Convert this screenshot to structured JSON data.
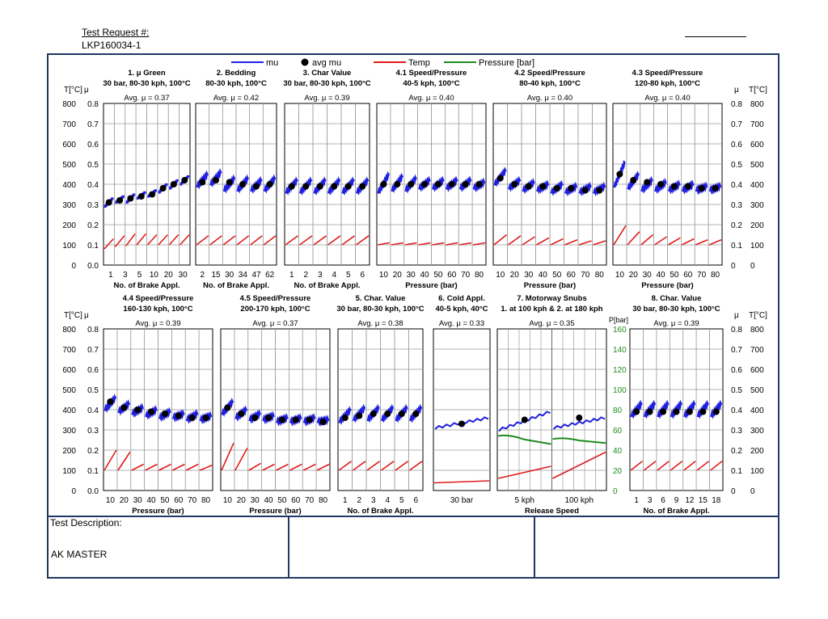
{
  "header": {
    "label": "Test Request #:",
    "value": "LKP160034-1"
  },
  "description": {
    "label": "Test Description:",
    "value": "AK MASTER"
  },
  "legend": [
    {
      "name": "mu",
      "color": "#1f1fe0",
      "kind": "line"
    },
    {
      "name": "avg mu",
      "color": "#000000",
      "kind": "dot"
    },
    {
      "name": "Temp",
      "color": "#e01b1b",
      "kind": "line"
    },
    {
      "name": "Pressure [bar]",
      "color": "#1e8c1e",
      "kind": "line"
    }
  ],
  "axes": {
    "t_label": "T[°C]",
    "mu_label": "μ",
    "p_label": "P[bar]",
    "t_ticks": [
      "800",
      "700",
      "600",
      "500",
      "400",
      "300",
      "200",
      "100",
      "0"
    ],
    "mu_ticks": [
      "0.8",
      "0.7",
      "0.6",
      "0.5",
      "0.4",
      "0.3",
      "0.2",
      "0.1",
      "0.0"
    ],
    "mu_ticks_right": [
      "0.8",
      "0.7",
      "0.6",
      "0.5",
      "0.4",
      "0.3",
      "0.2",
      "0.1",
      "0"
    ],
    "p_ticks": [
      "160",
      "140",
      "120",
      "100",
      "80",
      "60",
      "40",
      "20",
      "0"
    ]
  },
  "chart_data": [
    {
      "type": "line",
      "title": "1. μ Green",
      "subtitle": "30 bar, 80-30 kph, 100°C",
      "avg_label": "Avg. μ = 0.37",
      "xlabel": "No. of Brake Appl.",
      "xticks": [
        "1",
        "3",
        "5",
        "10",
        "20",
        "30"
      ],
      "ylim_mu": [
        0,
        0.8
      ],
      "ylim_temp": [
        0,
        800
      ],
      "ptype": "saw",
      "ncycles": 8,
      "mu": [
        [
          0.29,
          0.33
        ],
        [
          0.31,
          0.34
        ],
        [
          0.31,
          0.35
        ],
        [
          0.33,
          0.36
        ],
        [
          0.34,
          0.37
        ],
        [
          0.36,
          0.4
        ],
        [
          0.38,
          0.42
        ],
        [
          0.4,
          0.44
        ]
      ],
      "avg_mu": [
        0.31,
        0.32,
        0.33,
        0.34,
        0.35,
        0.38,
        0.4,
        0.42
      ],
      "temp": [
        [
          80,
          130
        ],
        [
          90,
          145
        ],
        [
          95,
          155
        ],
        [
          100,
          155
        ],
        [
          100,
          150
        ],
        [
          100,
          150
        ],
        [
          100,
          150
        ],
        [
          100,
          150
        ]
      ]
    },
    {
      "type": "line",
      "title": "2. Bedding",
      "subtitle": "80-30 kph, 100°C",
      "avg_label": "Avg. μ = 0.42",
      "xlabel": "No. of Brake Appl.",
      "xticks": [
        "2",
        "15",
        "30",
        "34",
        "47",
        "62"
      ],
      "ylim_mu": [
        0,
        0.8
      ],
      "ylim_temp": [
        0,
        800
      ],
      "ptype": "saw",
      "ncycles": 6,
      "mu": [
        [
          0.39,
          0.45
        ],
        [
          0.4,
          0.46
        ],
        [
          0.37,
          0.43
        ],
        [
          0.37,
          0.43
        ],
        [
          0.37,
          0.42
        ],
        [
          0.37,
          0.43
        ]
      ],
      "avg_mu": [
        0.41,
        0.42,
        0.41,
        0.4,
        0.39,
        0.4
      ],
      "temp": [
        [
          100,
          145
        ],
        [
          100,
          145
        ],
        [
          100,
          145
        ],
        [
          100,
          145
        ],
        [
          100,
          145
        ],
        [
          100,
          145
        ]
      ]
    },
    {
      "type": "line",
      "title": "3. Char Value",
      "subtitle": "30 bar, 80-30 kph, 100°C",
      "avg_label": "Avg. μ = 0.39",
      "xlabel": "No. of Brake Appl.",
      "xticks": [
        "1",
        "2",
        "3",
        "4",
        "5",
        "6"
      ],
      "ylim_mu": [
        0,
        0.8
      ],
      "ylim_temp": [
        0,
        800
      ],
      "ptype": "saw",
      "ncycles": 6,
      "mu": [
        [
          0.36,
          0.42
        ],
        [
          0.36,
          0.42
        ],
        [
          0.36,
          0.42
        ],
        [
          0.36,
          0.42
        ],
        [
          0.36,
          0.42
        ],
        [
          0.36,
          0.42
        ]
      ],
      "avg_mu": [
        0.39,
        0.39,
        0.39,
        0.39,
        0.39,
        0.39
      ],
      "temp": [
        [
          100,
          145
        ],
        [
          100,
          145
        ],
        [
          100,
          145
        ],
        [
          100,
          145
        ],
        [
          100,
          145
        ],
        [
          100,
          145
        ]
      ]
    },
    {
      "type": "line",
      "title": "4.1 Speed/Pressure",
      "subtitle": "40-5 kph, 100°C",
      "avg_label": "Avg. μ = 0.40",
      "xlabel": "Pressure (bar)",
      "xticks": [
        "10",
        "20",
        "30",
        "40",
        "50",
        "60",
        "70",
        "80"
      ],
      "ylim_mu": [
        0,
        0.8
      ],
      "ylim_temp": [
        0,
        800
      ],
      "ptype": "saw",
      "ncycles": 8,
      "mu": [
        [
          0.36,
          0.45
        ],
        [
          0.37,
          0.44
        ],
        [
          0.37,
          0.43
        ],
        [
          0.38,
          0.42
        ],
        [
          0.38,
          0.42
        ],
        [
          0.38,
          0.42
        ],
        [
          0.38,
          0.42
        ],
        [
          0.38,
          0.41
        ]
      ],
      "avg_mu": [
        0.4,
        0.4,
        0.4,
        0.4,
        0.4,
        0.4,
        0.4,
        0.4
      ],
      "temp": [
        [
          100,
          110
        ],
        [
          100,
          110
        ],
        [
          100,
          110
        ],
        [
          100,
          110
        ],
        [
          100,
          110
        ],
        [
          100,
          110
        ],
        [
          100,
          110
        ],
        [
          100,
          110
        ]
      ]
    },
    {
      "type": "line",
      "title": "4.2 Speed/Pressure",
      "subtitle": "80-40 kph, 100°C",
      "avg_label": "Avg. μ = 0.40",
      "xlabel": "Pressure (bar)",
      "xticks": [
        "10",
        "20",
        "30",
        "40",
        "50",
        "60",
        "70",
        "80"
      ],
      "ylim_mu": [
        0,
        0.8
      ],
      "ylim_temp": [
        0,
        800
      ],
      "ptype": "saw",
      "ncycles": 8,
      "mu": [
        [
          0.4,
          0.47
        ],
        [
          0.38,
          0.42
        ],
        [
          0.37,
          0.41
        ],
        [
          0.37,
          0.4
        ],
        [
          0.36,
          0.4
        ],
        [
          0.36,
          0.39
        ],
        [
          0.36,
          0.39
        ],
        [
          0.36,
          0.39
        ]
      ],
      "avg_mu": [
        0.43,
        0.4,
        0.39,
        0.39,
        0.38,
        0.38,
        0.37,
        0.37
      ],
      "temp": [
        [
          100,
          150
        ],
        [
          100,
          145
        ],
        [
          100,
          140
        ],
        [
          100,
          135
        ],
        [
          100,
          130
        ],
        [
          100,
          125
        ],
        [
          100,
          120
        ],
        [
          100,
          120
        ]
      ]
    },
    {
      "type": "line",
      "title": "4.3 Speed/Pressure",
      "subtitle": "120-80 kph, 100°C",
      "avg_label": "Avg. μ = 0.40",
      "xlabel": "Pressure (bar)",
      "xticks": [
        "10",
        "20",
        "30",
        "40",
        "50",
        "60",
        "70",
        "80"
      ],
      "ylim_mu": [
        0,
        0.8
      ],
      "ylim_temp": [
        0,
        800
      ],
      "ptype": "saw",
      "ncycles": 8,
      "mu": [
        [
          0.39,
          0.51
        ],
        [
          0.38,
          0.45
        ],
        [
          0.37,
          0.42
        ],
        [
          0.37,
          0.41
        ],
        [
          0.37,
          0.4
        ],
        [
          0.37,
          0.4
        ],
        [
          0.37,
          0.39
        ],
        [
          0.37,
          0.39
        ]
      ],
      "avg_mu": [
        0.45,
        0.42,
        0.41,
        0.4,
        0.39,
        0.39,
        0.38,
        0.38
      ],
      "temp": [
        [
          100,
          195
        ],
        [
          100,
          165
        ],
        [
          100,
          150
        ],
        [
          100,
          140
        ],
        [
          100,
          135
        ],
        [
          100,
          130
        ],
        [
          100,
          125
        ],
        [
          100,
          125
        ]
      ]
    },
    {
      "type": "line",
      "title": "4.4 Speed/Pressure",
      "subtitle": "160-130 kph, 100°C",
      "avg_label": "Avg. μ = 0.39",
      "xlabel": "Pressure (bar)",
      "xticks": [
        "10",
        "20",
        "30",
        "40",
        "50",
        "60",
        "70",
        "80"
      ],
      "ylim_mu": [
        0,
        0.8
      ],
      "ylim_temp": [
        0,
        800
      ],
      "ptype": "saw",
      "ncycles": 8,
      "mu": [
        [
          0.4,
          0.46
        ],
        [
          0.39,
          0.43
        ],
        [
          0.38,
          0.41
        ],
        [
          0.37,
          0.4
        ],
        [
          0.36,
          0.39
        ],
        [
          0.36,
          0.38
        ],
        [
          0.35,
          0.38
        ],
        [
          0.35,
          0.37
        ]
      ],
      "avg_mu": [
        0.44,
        0.41,
        0.4,
        0.39,
        0.38,
        0.37,
        0.36,
        0.36
      ],
      "temp": [
        [
          100,
          200
        ],
        [
          100,
          190
        ],
        [
          100,
          130
        ],
        [
          100,
          130
        ],
        [
          100,
          130
        ],
        [
          100,
          130
        ],
        [
          100,
          130
        ],
        [
          100,
          125
        ]
      ]
    },
    {
      "type": "line",
      "title": "4.5 Speed/Pressure",
      "subtitle": "200-170 kph, 100°C",
      "avg_label": "Avg. μ = 0.37",
      "xlabel": "Pressure (bar)",
      "xticks": [
        "10",
        "20",
        "30",
        "40",
        "50",
        "60",
        "70",
        "80"
      ],
      "ylim_mu": [
        0,
        0.8
      ],
      "ylim_temp": [
        0,
        800
      ],
      "ptype": "saw",
      "ncycles": 8,
      "mu": [
        [
          0.38,
          0.44
        ],
        [
          0.36,
          0.4
        ],
        [
          0.35,
          0.38
        ],
        [
          0.35,
          0.37
        ],
        [
          0.34,
          0.36
        ],
        [
          0.34,
          0.36
        ],
        [
          0.34,
          0.36
        ],
        [
          0.34,
          0.35
        ]
      ],
      "avg_mu": [
        0.41,
        0.38,
        0.36,
        0.36,
        0.35,
        0.35,
        0.35,
        0.34
      ],
      "temp": [
        [
          100,
          235
        ],
        [
          100,
          210
        ],
        [
          100,
          135
        ],
        [
          100,
          130
        ],
        [
          100,
          130
        ],
        [
          100,
          130
        ],
        [
          100,
          130
        ],
        [
          100,
          130
        ]
      ]
    },
    {
      "type": "line",
      "title": "5. Char. Value",
      "subtitle": "30 bar, 80-30 kph, 100°C",
      "avg_label": "Avg. μ = 0.38",
      "xlabel": "No. of Brake Appl.",
      "xticks": [
        "1",
        "2",
        "3",
        "4",
        "5",
        "6"
      ],
      "ylim_mu": [
        0,
        0.8
      ],
      "ylim_temp": [
        0,
        800
      ],
      "ptype": "saw",
      "ncycles": 6,
      "mu": [
        [
          0.34,
          0.4
        ],
        [
          0.35,
          0.41
        ],
        [
          0.35,
          0.41
        ],
        [
          0.35,
          0.41
        ],
        [
          0.35,
          0.41
        ],
        [
          0.35,
          0.41
        ]
      ],
      "avg_mu": [
        0.36,
        0.37,
        0.38,
        0.38,
        0.38,
        0.38
      ],
      "temp": [
        [
          100,
          145
        ],
        [
          100,
          145
        ],
        [
          100,
          145
        ],
        [
          100,
          145
        ],
        [
          100,
          145
        ],
        [
          100,
          145
        ]
      ]
    },
    {
      "type": "line",
      "title": "6. Cold Appl.",
      "subtitle": "40-5 kph, 40°C",
      "avg_label": "Avg. μ = 0.33",
      "xlabel": "",
      "xticks": [
        "30 bar"
      ],
      "ylim_mu": [
        0,
        0.8
      ],
      "ylim_temp": [
        0,
        800
      ],
      "ptype": "cont",
      "ncycles": 1,
      "mu": [
        [
          0.31,
          0.36
        ]
      ],
      "avg_mu": [
        0.33
      ],
      "temp": [
        [
          38,
          48
        ]
      ]
    },
    {
      "type": "line",
      "title": "7. Motorway Snubs",
      "subtitle": "1. at 100 kph & 2. at 180 kph",
      "avg_label": "Avg. μ = 0.35",
      "xlabel": "Release Speed",
      "xticks": [
        "5 kph",
        "100 kph"
      ],
      "ylim_mu": [
        0,
        0.8
      ],
      "ylim_temp": [
        0,
        800
      ],
      "ylim_pressure": [
        0,
        160
      ],
      "ptype": "snub",
      "ncycles": 2,
      "mu": [
        [
          0.3,
          0.39
        ],
        [
          0.31,
          0.36
        ]
      ],
      "avg_mu": [
        0.35,
        0.36
      ],
      "temp": [
        [
          60,
          120
        ],
        [
          60,
          190
        ]
      ],
      "pressure": [
        [
          55,
          46
        ],
        [
          52,
          47
        ]
      ]
    },
    {
      "type": "line",
      "title": "8. Char. Value",
      "subtitle": "30 bar, 80-30 kph, 100°C",
      "avg_label": "Avg. μ = 0.39",
      "xlabel": "No. of Brake Appl.",
      "xticks": [
        "1",
        "3",
        "6",
        "9",
        "12",
        "15",
        "18"
      ],
      "ylim_mu": [
        0,
        0.8
      ],
      "ylim_temp": [
        0,
        800
      ],
      "ptype": "saw",
      "ncycles": 7,
      "mu": [
        [
          0.37,
          0.43
        ],
        [
          0.37,
          0.43
        ],
        [
          0.37,
          0.43
        ],
        [
          0.37,
          0.43
        ],
        [
          0.37,
          0.43
        ],
        [
          0.37,
          0.43
        ],
        [
          0.37,
          0.43
        ]
      ],
      "avg_mu": [
        0.39,
        0.39,
        0.39,
        0.39,
        0.39,
        0.39,
        0.39
      ],
      "temp": [
        [
          100,
          145
        ],
        [
          100,
          145
        ],
        [
          100,
          145
        ],
        [
          100,
          145
        ],
        [
          100,
          145
        ],
        [
          100,
          145
        ],
        [
          100,
          145
        ]
      ]
    }
  ]
}
